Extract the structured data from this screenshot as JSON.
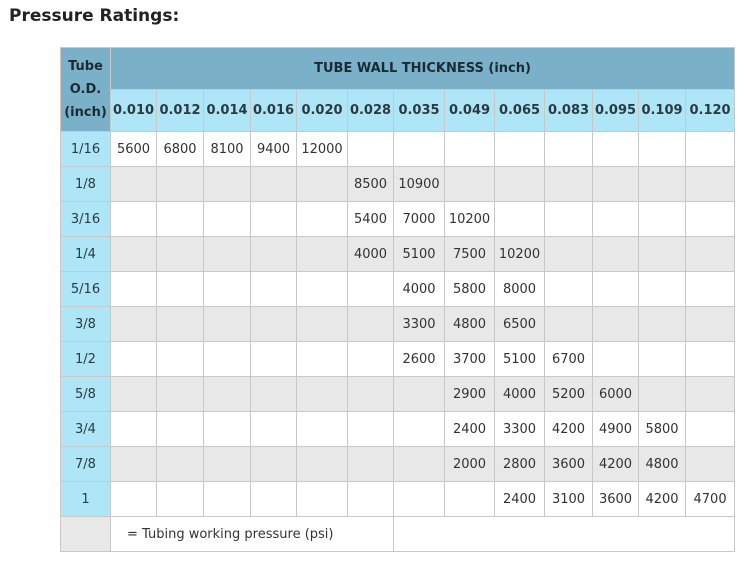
{
  "title": "Pressure Ratings:",
  "table": {
    "od_header_lines": [
      "Tube",
      "O.D.",
      "(inch)"
    ],
    "main_header": "TUBE WALL THICKNESS (inch)",
    "thicknesses": [
      "0.010",
      "0.012",
      "0.014",
      "0.016",
      "0.020",
      "0.028",
      "0.035",
      "0.049",
      "0.065",
      "0.083",
      "0.095",
      "0.109",
      "0.120"
    ],
    "rows": [
      {
        "od": "1/16",
        "values": [
          "5600",
          "6800",
          "8100",
          "9400",
          "12000",
          "",
          "",
          "",
          "",
          "",
          "",
          "",
          ""
        ]
      },
      {
        "od": "1/8",
        "values": [
          "",
          "",
          "",
          "",
          "",
          "8500",
          "10900",
          "",
          "",
          "",
          "",
          "",
          ""
        ]
      },
      {
        "od": "3/16",
        "values": [
          "",
          "",
          "",
          "",
          "",
          "5400",
          "7000",
          "10200",
          "",
          "",
          "",
          "",
          ""
        ]
      },
      {
        "od": "1/4",
        "values": [
          "",
          "",
          "",
          "",
          "",
          "4000",
          "5100",
          "7500",
          "10200",
          "",
          "",
          "",
          ""
        ]
      },
      {
        "od": "5/16",
        "values": [
          "",
          "",
          "",
          "",
          "",
          "",
          "4000",
          "5800",
          "8000",
          "",
          "",
          "",
          ""
        ]
      },
      {
        "od": "3/8",
        "values": [
          "",
          "",
          "",
          "",
          "",
          "",
          "3300",
          "4800",
          "6500",
          "",
          "",
          "",
          ""
        ]
      },
      {
        "od": "1/2",
        "values": [
          "",
          "",
          "",
          "",
          "",
          "",
          "2600",
          "3700",
          "5100",
          "6700",
          "",
          "",
          ""
        ]
      },
      {
        "od": "5/8",
        "values": [
          "",
          "",
          "",
          "",
          "",
          "",
          "",
          "2900",
          "4000",
          "5200",
          "6000",
          "",
          ""
        ]
      },
      {
        "od": "3/4",
        "values": [
          "",
          "",
          "",
          "",
          "",
          "",
          "",
          "2400",
          "3300",
          "4200",
          "4900",
          "5800",
          ""
        ]
      },
      {
        "od": "7/8",
        "values": [
          "",
          "",
          "",
          "",
          "",
          "",
          "",
          "2000",
          "2800",
          "3600",
          "4200",
          "4800",
          ""
        ]
      },
      {
        "od": "1",
        "values": [
          "",
          "",
          "",
          "",
          "",
          "",
          "",
          "",
          "2400",
          "3100",
          "3600",
          "4200",
          "4700"
        ]
      }
    ],
    "footnote": "= Tubing working pressure (psi)"
  }
}
